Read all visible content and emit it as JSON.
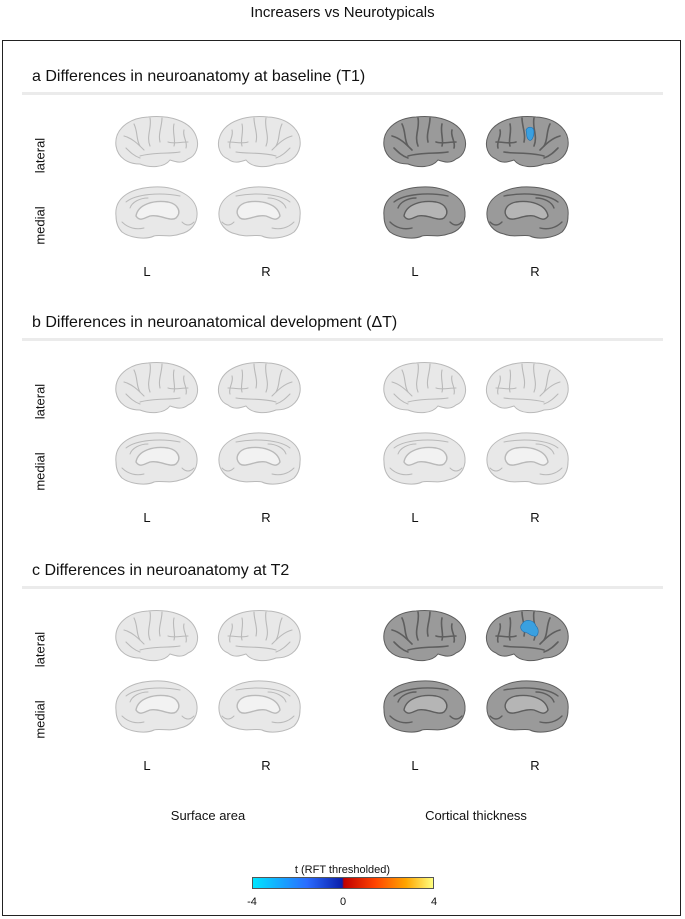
{
  "title": "Increasers vs Neurotypicals",
  "panels": [
    {
      "label": "a Differences in neuroanatomy at baseline (T1)",
      "thickness_shade": "dark",
      "blob": "small"
    },
    {
      "label": "b Differences in neuroanatomical development (ΔT)",
      "thickness_shade": "light",
      "blob": "none"
    },
    {
      "label": "c Differences in neuroanatomy at T2",
      "thickness_shade": "dark",
      "blob": "large"
    }
  ],
  "row_labels": {
    "lateral": "lateral",
    "medial": "medial"
  },
  "hemispheres": {
    "left": "L",
    "right": "R"
  },
  "columns": {
    "surface": "Surface area",
    "thickness": "Cortical thickness"
  },
  "colorbar": {
    "title": "t (RFT thresholded)",
    "ticks": [
      "-4",
      "0",
      "4"
    ],
    "colors": [
      "#00e5ff",
      "#2a6cff",
      "#0b1eaa",
      "#c00000",
      "#ff4400",
      "#ffa500",
      "#ffff80"
    ]
  },
  "colors": {
    "light_cortex": "#e8e8e8",
    "dark_cortex": "#9a9a9a",
    "blob": "#3aa0e0"
  }
}
